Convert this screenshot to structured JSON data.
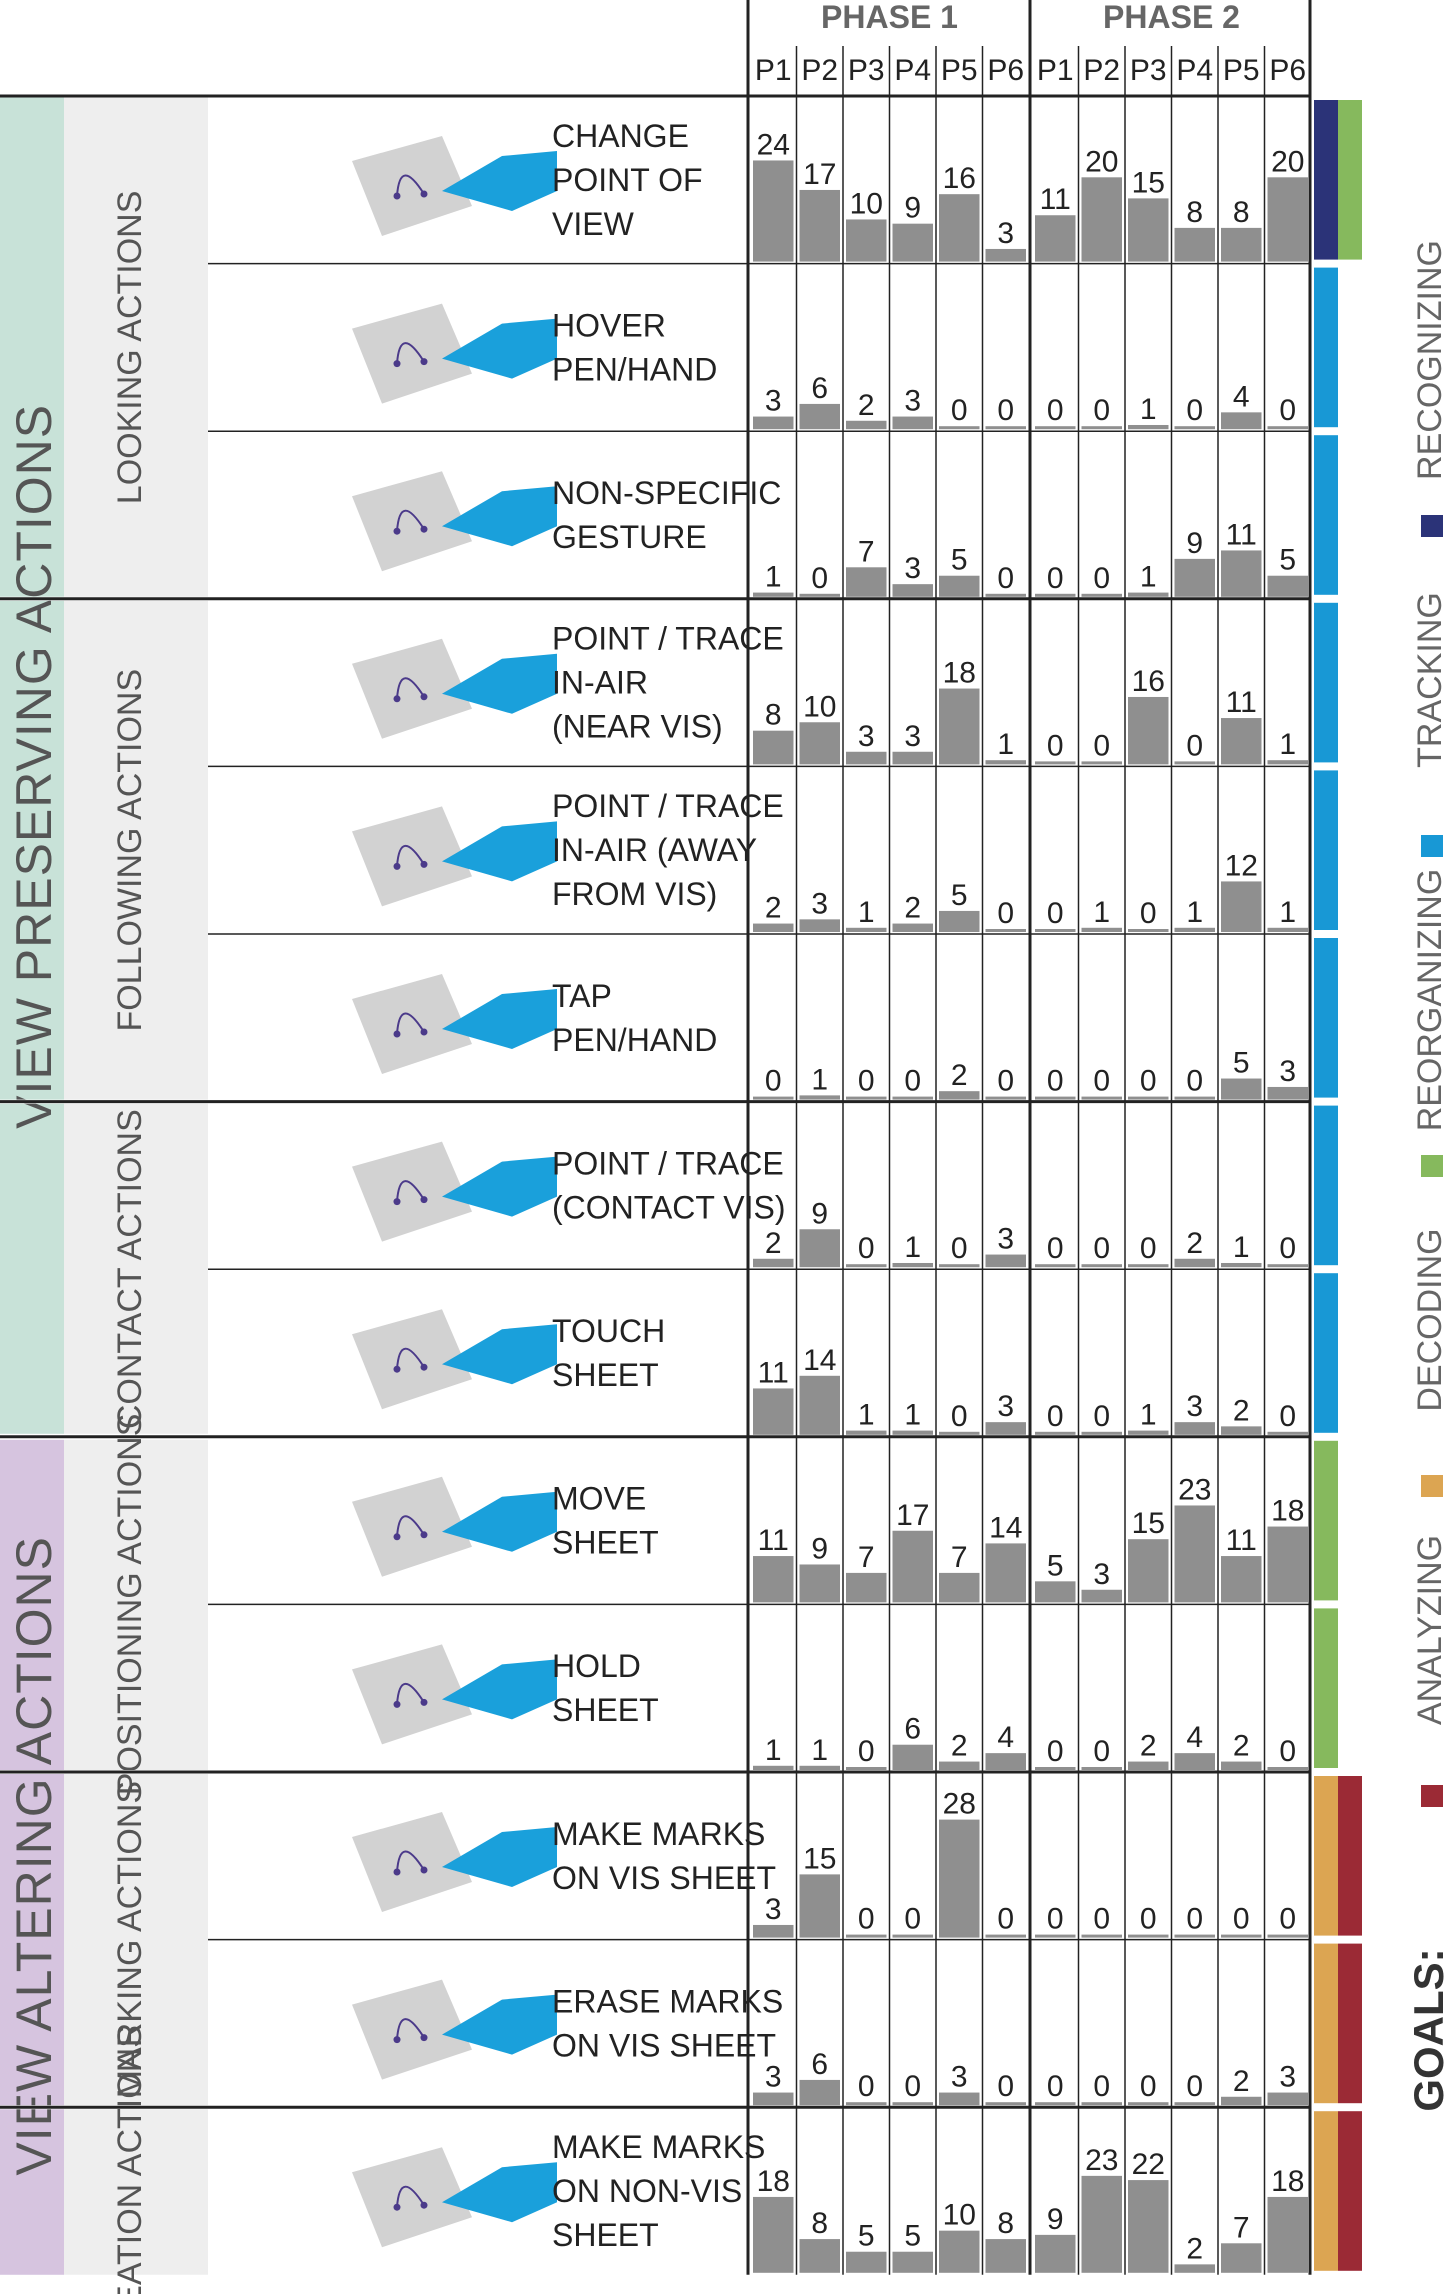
{
  "chart_data": {
    "type": "bar",
    "phases": [
      "PHASE 1",
      "PHASE 2"
    ],
    "participants": [
      "P1",
      "P2",
      "P3",
      "P4",
      "P5",
      "P6"
    ],
    "bar_max": 28,
    "categories": [
      {
        "label": "VIEW PRESERVING ACTIONS",
        "color": "#c8e2d8"
      },
      {
        "label": "VIEW ALTERING ACTIONS",
        "color": "#d6c4df"
      }
    ],
    "groups": [
      {
        "label": "LOOKING ACTIONS"
      },
      {
        "label": "FOLLOWING ACTIONS"
      },
      {
        "label": "CONTACT ACTIONS"
      },
      {
        "label": "POSITIONING ACTIONS"
      },
      {
        "label": "MARKING ACTIONS"
      },
      {
        "label": "CREATION ACTIONS"
      }
    ],
    "goals_title": "GOALS:",
    "goals": [
      {
        "name": "RECOGNIZING",
        "color": "#2b3378"
      },
      {
        "name": "TRACKING",
        "color": "#1898d5"
      },
      {
        "name": "REORGANIZING",
        "color": "#86b95d"
      },
      {
        "name": "DECODING",
        "color": "#dca552"
      },
      {
        "name": "ANALYZING",
        "color": "#9b2a35"
      }
    ],
    "rows": [
      {
        "label": [
          "CHANGE",
          "POINT OF",
          "VIEW"
        ],
        "phase1": [
          24,
          17,
          10,
          9,
          16,
          3
        ],
        "phase2": [
          11,
          20,
          15,
          8,
          8,
          20
        ],
        "goals": [
          "RECOGNIZING",
          "REORGANIZING"
        ]
      },
      {
        "label": [
          "HOVER",
          "PEN/HAND"
        ],
        "phase1": [
          3,
          6,
          2,
          3,
          0,
          0
        ],
        "phase2": [
          0,
          0,
          1,
          0,
          4,
          0
        ],
        "goals": [
          "TRACKING"
        ]
      },
      {
        "label": [
          "NON-SPECIFIC",
          "GESTURE"
        ],
        "phase1": [
          1,
          0,
          7,
          3,
          5,
          0
        ],
        "phase2": [
          0,
          0,
          1,
          9,
          11,
          5
        ],
        "goals": [
          "TRACKING"
        ]
      },
      {
        "label": [
          "POINT / TRACE",
          "IN-AIR",
          "(NEAR VIS)"
        ],
        "phase1": [
          8,
          10,
          3,
          3,
          18,
          1
        ],
        "phase2": [
          0,
          0,
          16,
          0,
          11,
          1
        ],
        "goals": [
          "TRACKING"
        ]
      },
      {
        "label": [
          "POINT / TRACE",
          "IN-AIR (AWAY",
          "FROM VIS)"
        ],
        "phase1": [
          2,
          3,
          1,
          2,
          5,
          0
        ],
        "phase2": [
          0,
          1,
          0,
          1,
          12,
          1
        ],
        "goals": [
          "TRACKING"
        ]
      },
      {
        "label": [
          "TAP",
          "PEN/HAND"
        ],
        "phase1": [
          0,
          1,
          0,
          0,
          2,
          0
        ],
        "phase2": [
          0,
          0,
          0,
          0,
          5,
          3
        ],
        "goals": [
          "TRACKING"
        ]
      },
      {
        "label": [
          "POINT / TRACE",
          "(CONTACT VIS)"
        ],
        "phase1": [
          2,
          9,
          0,
          1,
          0,
          3
        ],
        "phase2": [
          0,
          0,
          0,
          2,
          1,
          0
        ],
        "goals": [
          "TRACKING"
        ]
      },
      {
        "label": [
          "TOUCH",
          "SHEET"
        ],
        "phase1": [
          11,
          14,
          1,
          1,
          0,
          3
        ],
        "phase2": [
          0,
          0,
          1,
          3,
          2,
          0
        ],
        "goals": [
          "TRACKING"
        ]
      },
      {
        "label": [
          "MOVE",
          "SHEET"
        ],
        "phase1": [
          11,
          9,
          7,
          17,
          7,
          14
        ],
        "phase2": [
          5,
          3,
          15,
          23,
          11,
          18
        ],
        "goals": [
          "REORGANIZING"
        ]
      },
      {
        "label": [
          "HOLD",
          "SHEET"
        ],
        "phase1": [
          1,
          1,
          0,
          6,
          2,
          4
        ],
        "phase2": [
          0,
          0,
          2,
          4,
          2,
          0
        ],
        "goals": [
          "REORGANIZING"
        ]
      },
      {
        "label": [
          "MAKE MARKS",
          "ON VIS SHEET"
        ],
        "phase1": [
          3,
          15,
          0,
          0,
          28,
          0
        ],
        "phase2": [
          0,
          0,
          0,
          0,
          0,
          0
        ],
        "goals": [
          "DECODING",
          "ANALYZING"
        ]
      },
      {
        "label": [
          "ERASE MARKS",
          "ON VIS SHEET"
        ],
        "phase1": [
          3,
          6,
          0,
          0,
          3,
          0
        ],
        "phase2": [
          0,
          0,
          0,
          0,
          2,
          3
        ],
        "goals": [
          "DECODING",
          "ANALYZING"
        ]
      },
      {
        "label": [
          "MAKE MARKS",
          "ON NON-VIS",
          "SHEET"
        ],
        "phase1": [
          18,
          8,
          5,
          5,
          10,
          8
        ],
        "phase2": [
          9,
          23,
          22,
          2,
          7,
          18
        ],
        "goals": [
          "DECODING",
          "ANALYZING"
        ]
      }
    ]
  }
}
